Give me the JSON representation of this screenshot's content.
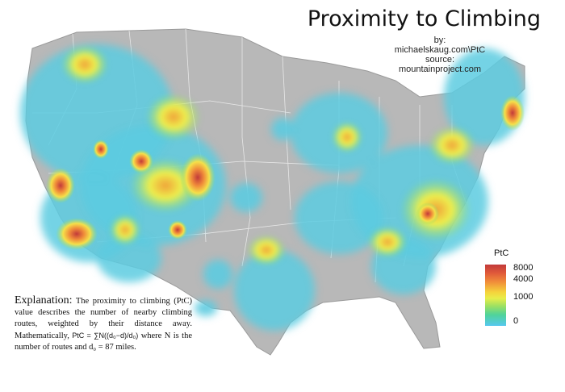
{
  "title": "Proximity to Climbing",
  "credits": {
    "by_label": "by:",
    "author": "michaelskaug.com\\PtC",
    "source_label": "source:",
    "source": "mountainproject.com"
  },
  "legend": {
    "title": "PtC",
    "ticks": [
      "8000",
      "4000",
      "1000",
      "0"
    ],
    "colors": [
      "#c23a3a",
      "#f08c3a",
      "#e8ee4a",
      "#4fd39a",
      "#56c8ef"
    ]
  },
  "explanation": {
    "lead": "Explanation:",
    "text_1": "The proximity to climbing (PtC) value describes the number of nearby climbing routes, weighted by their distance away. Mathematically,",
    "formula": "PtC = ∑N((d₀−d)/d₀)",
    "text_2": "where N is the number of routes and",
    "d0_label": "d₀ = 87 miles."
  }
}
